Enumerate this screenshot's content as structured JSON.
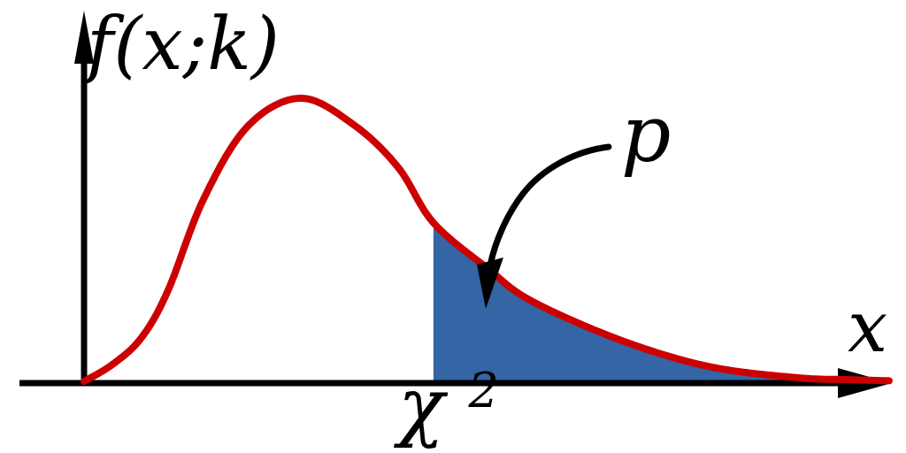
{
  "labels": {
    "y_axis": "f(x;k)",
    "x_axis": "x",
    "p_annotation": "p",
    "critical_base": "χ",
    "critical_sup": "2"
  },
  "colors": {
    "curve": "#cc0000",
    "fill": "#3465a4",
    "axis": "#000000",
    "background": "#ffffff",
    "text": "#000000"
  },
  "chart_data": {
    "type": "area",
    "title": "",
    "xlabel": "x",
    "ylabel": "f(x;k)",
    "grid": false,
    "legend": false,
    "curve": {
      "name": "chi-squared probability density f(x;k), schematic curve (no numeric ticks shown)",
      "points_normalized": [
        [
          0,
          0
        ],
        [
          0.035,
          0.059
        ],
        [
          0.071,
          0.153
        ],
        [
          0.104,
          0.319
        ],
        [
          0.148,
          0.641
        ],
        [
          0.203,
          0.9
        ],
        [
          0.269,
          1
        ],
        [
          0.335,
          0.906
        ],
        [
          0.39,
          0.756
        ],
        [
          0.434,
          0.56
        ],
        [
          0.502,
          0.397
        ],
        [
          0.555,
          0.285
        ],
        [
          0.665,
          0.147
        ],
        [
          0.775,
          0.053
        ],
        [
          0.885,
          0.013
        ],
        [
          0.951,
          0.006
        ],
        [
          1,
          0.002
        ]
      ],
      "peak_x_normalized": 0.269
    },
    "critical_value": {
      "label": "χ²",
      "x_normalized": 0.434
    },
    "shaded_region": {
      "label": "p",
      "from": "χ²",
      "to": "axis end",
      "meaning": "right-tail area under the curve"
    },
    "annotations": [
      {
        "text": "p",
        "points_to": "shaded tail area right of χ²"
      }
    ]
  }
}
